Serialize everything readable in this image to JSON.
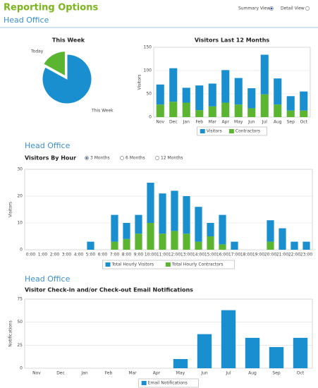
{
  "header": {
    "title": "Reporting Options",
    "subtitle": "Head Office",
    "views": [
      "Summary View",
      "Detail View"
    ],
    "selected_view": 0
  },
  "section_headings": [
    "Head Office",
    "Head Office"
  ],
  "hour_filter": {
    "options": [
      "3 Months",
      "6 Months",
      "12 Months"
    ],
    "selected": 0
  },
  "chart_data": [
    {
      "type": "pie",
      "title": "This Week",
      "categories": [
        "Today",
        "This Week"
      ],
      "values": [
        17,
        83
      ],
      "colors": [
        "#5cb531",
        "#1a8fcf"
      ]
    },
    {
      "type": "bar",
      "stacked": true,
      "title": "Visitors Last 12 Months",
      "ylabel": "Visitors",
      "categories": [
        "Nov",
        "Dec",
        "Jan",
        "Feb",
        "Mar",
        "Apr",
        "May",
        "Jun",
        "Jul",
        "Aug",
        "Sep",
        "Oct"
      ],
      "series": [
        {
          "name": "Visitors",
          "color": "#1a8fcf",
          "values": [
            43,
            72,
            32,
            53,
            49,
            70,
            57,
            43,
            85,
            56,
            31,
            41
          ]
        },
        {
          "name": "Contractors",
          "color": "#5cb531",
          "values": [
            27,
            33,
            31,
            15,
            23,
            31,
            27,
            19,
            49,
            27,
            14,
            14
          ]
        }
      ],
      "ylim": [
        0,
        150
      ],
      "yticks": [
        0,
        50,
        100,
        150
      ],
      "grid": true
    },
    {
      "type": "bar",
      "stacked": true,
      "title": "Visitors By Hour",
      "ylabel": "Visitors",
      "categories": [
        "0:00",
        "1:00",
        "2:00",
        "3:00",
        "4:00",
        "5:00",
        "6:00",
        "7:00",
        "8:00",
        "9:00",
        "10:00",
        "11:00",
        "12:00",
        "13:00",
        "14:00",
        "15:00",
        "16:00",
        "17:00",
        "18:00",
        "19:00",
        "20:00",
        "21:00",
        "22:00",
        "23:00"
      ],
      "series": [
        {
          "name": "Total Hourly Visitors",
          "color": "#1a8fcf",
          "values": [
            0,
            0,
            0,
            0,
            0,
            3,
            0,
            10,
            6,
            7,
            15,
            15,
            15,
            14,
            13,
            5,
            11,
            3,
            0,
            0,
            8,
            8,
            3,
            3
          ]
        },
        {
          "name": "Total Hourly Contractors",
          "color": "#5cb531",
          "values": [
            0,
            0,
            0,
            0,
            0,
            0,
            0,
            3,
            4,
            6,
            10,
            6,
            7,
            6,
            3,
            5,
            2,
            0,
            0,
            0,
            3,
            0,
            0,
            0
          ]
        }
      ],
      "ylim": [
        0,
        30
      ],
      "yticks": [
        0,
        10,
        20,
        30
      ],
      "grid": true
    },
    {
      "type": "bar",
      "stacked": false,
      "title": "Visitor Check-in and/or Check-out Email Notifications",
      "ylabel": "Notifications",
      "categories": [
        "Nov",
        "Dec",
        "Jan",
        "Feb",
        "Mar",
        "Apr",
        "May",
        "Jun",
        "Jul",
        "Aug",
        "Sep",
        "Oct"
      ],
      "series": [
        {
          "name": "Email Notifications",
          "color": "#1a8fcf",
          "values": [
            0,
            0,
            0,
            0,
            0,
            0,
            10,
            37,
            63,
            33,
            23,
            33
          ]
        }
      ],
      "ylim": [
        0,
        75
      ],
      "yticks": [
        0,
        25,
        50,
        75
      ],
      "grid": true
    }
  ]
}
